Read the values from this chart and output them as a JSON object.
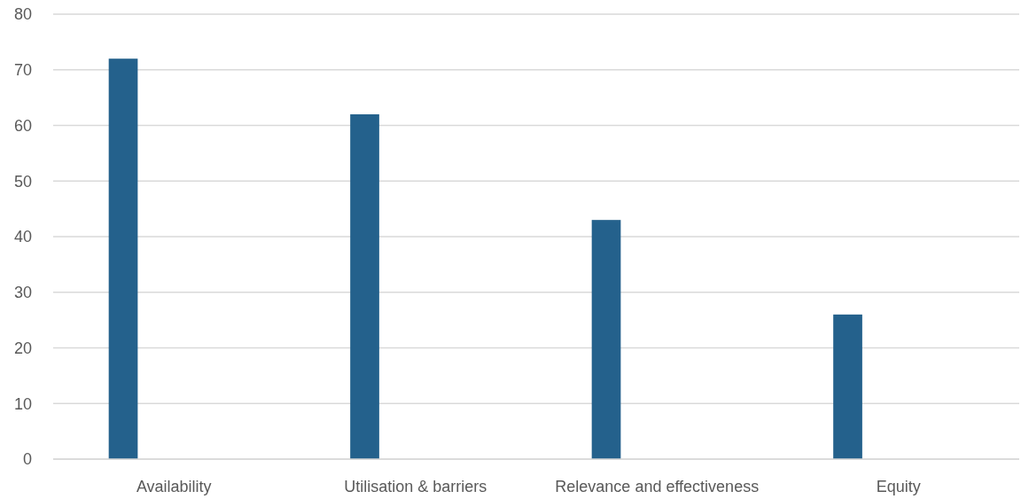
{
  "chart_data": {
    "type": "bar",
    "categories": [
      "Availability",
      "Utilisation & barriers",
      "Relevance and effectiveness",
      "Equity"
    ],
    "series": [
      {
        "color": "#24618c",
        "values": [
          72,
          62,
          43,
          26
        ]
      },
      {
        "values": [
          null,
          null,
          null,
          null
        ]
      }
    ],
    "ylim": [
      0,
      80
    ],
    "yticks": [
      0,
      10,
      20,
      30,
      40,
      50,
      60,
      70,
      80
    ],
    "grid": "y"
  }
}
